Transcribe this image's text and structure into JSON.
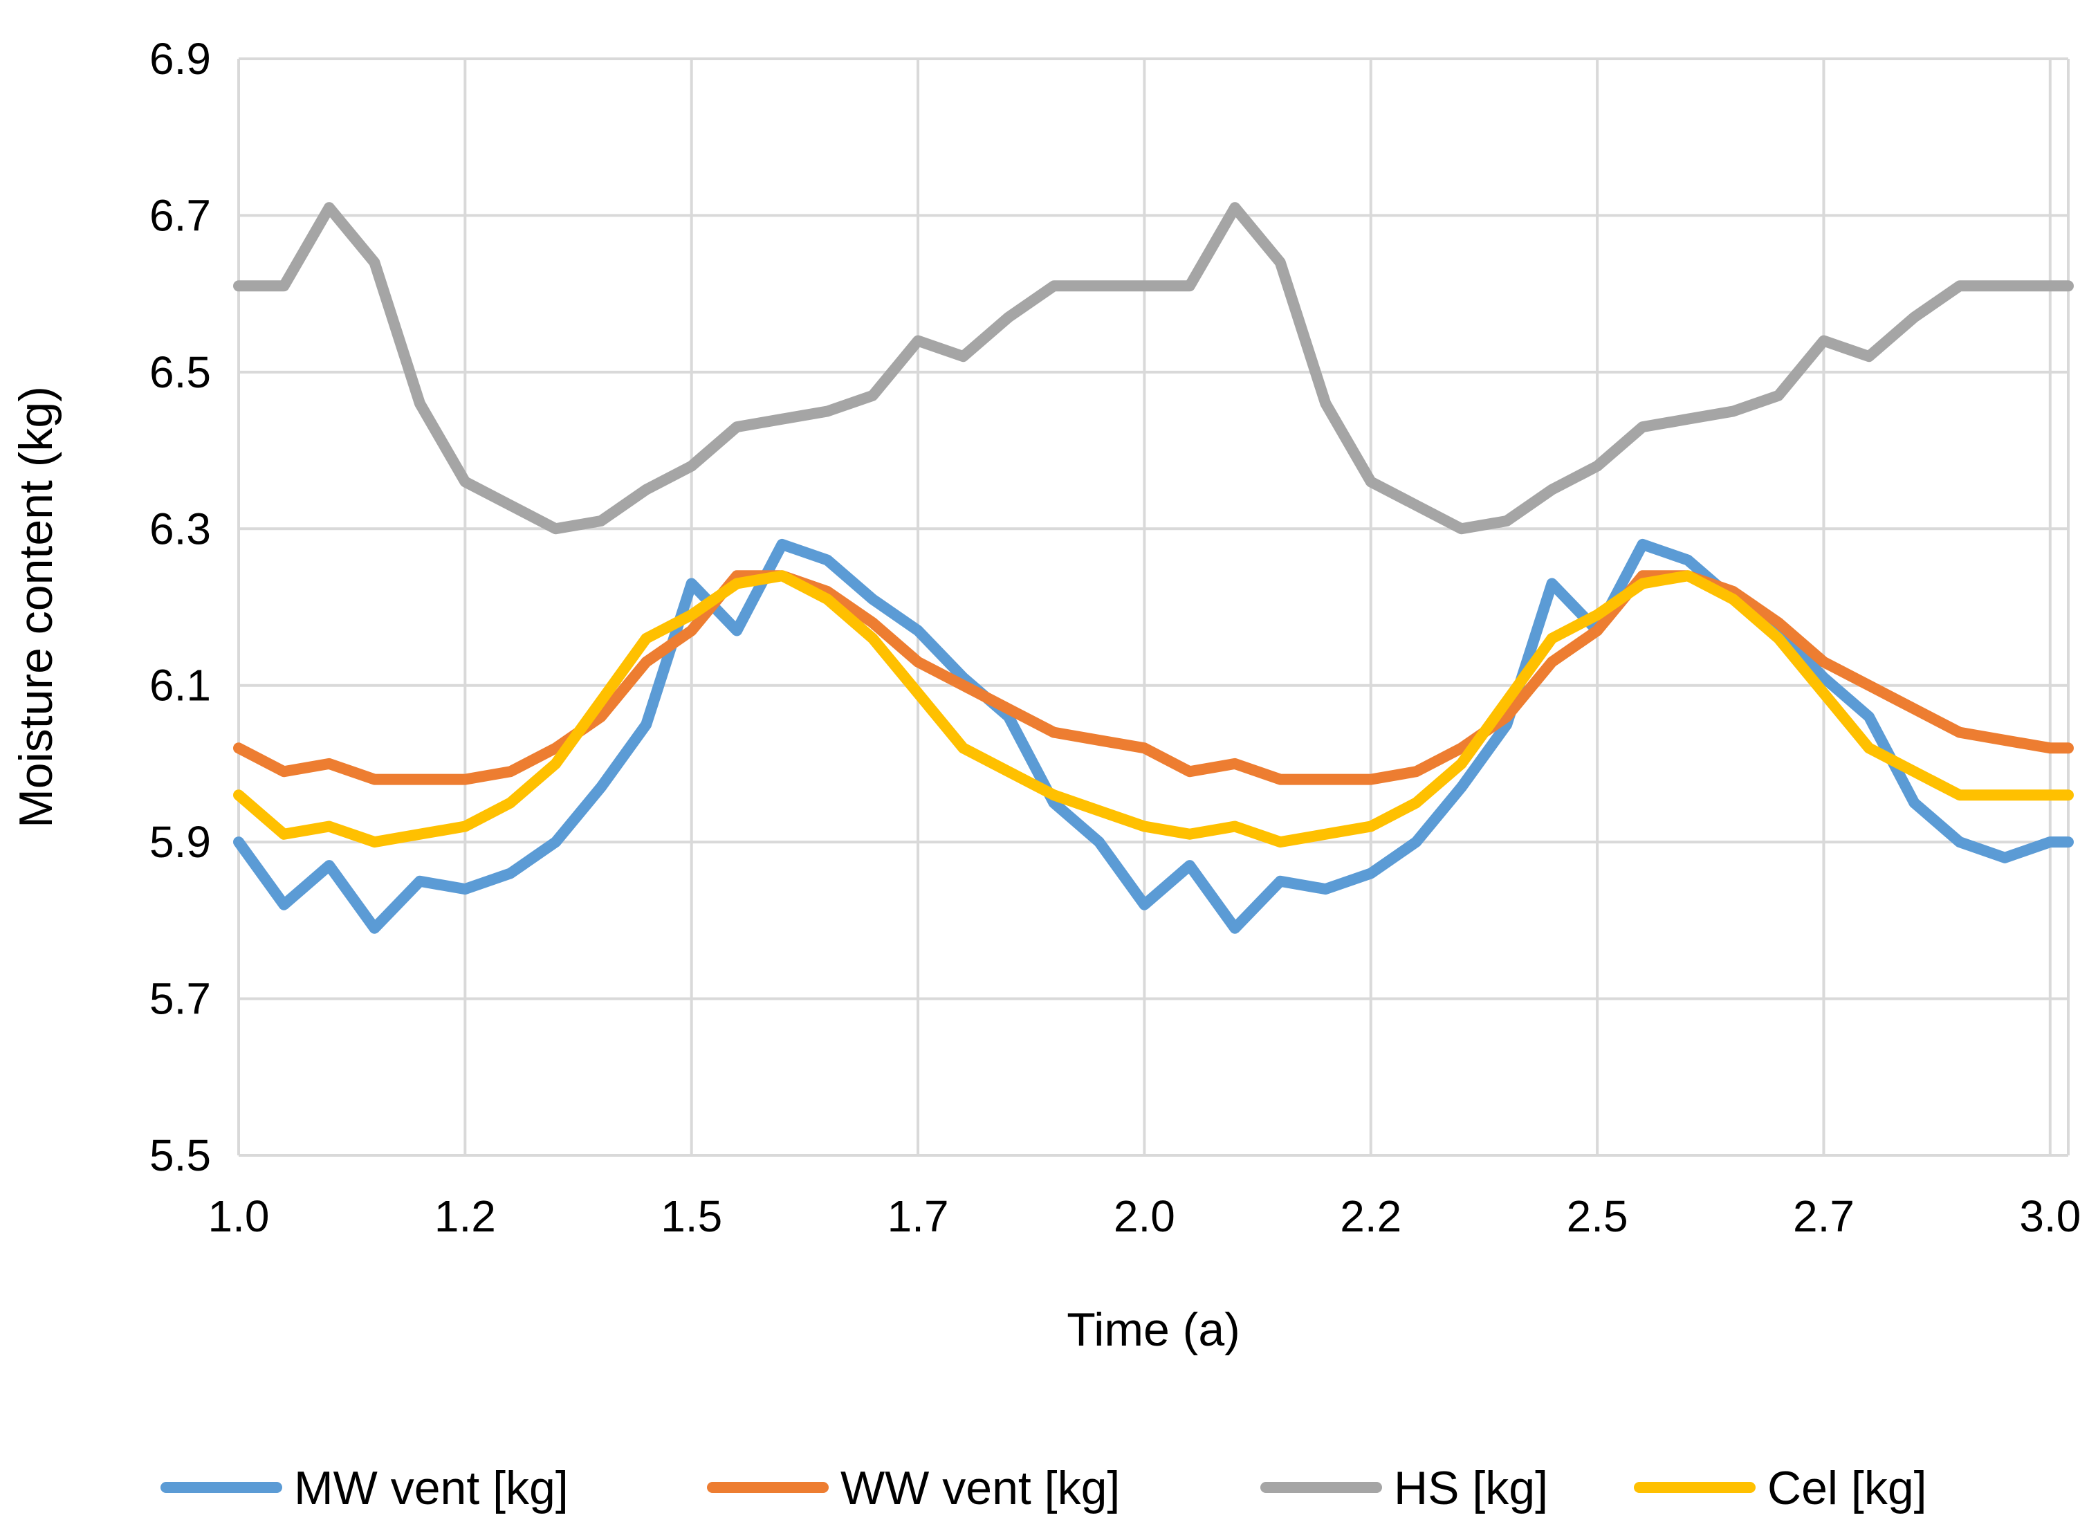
{
  "chart_data": {
    "type": "line",
    "title": "",
    "xlabel": "Time (a)",
    "ylabel": "Moisture content (kg)",
    "xlim": [
      1.0,
      3.02
    ],
    "ylim": [
      5.5,
      6.9
    ],
    "x_ticks": [
      1.0,
      1.25,
      1.5,
      1.75,
      2.0,
      2.25,
      2.5,
      2.75,
      3.0
    ],
    "x_tick_labels": [
      "1.0",
      "1.2",
      "1.5",
      "1.7",
      "2.0",
      "2.2",
      "2.5",
      "2.7",
      "3.0"
    ],
    "y_ticks": [
      5.5,
      5.7,
      5.9,
      6.1,
      6.3,
      6.5,
      6.7,
      6.9
    ],
    "y_tick_labels": [
      "5.5",
      "5.7",
      "5.9",
      "6.1",
      "6.3",
      "6.5",
      "6.7",
      "6.9"
    ],
    "grid": true,
    "legend_position": "bottom",
    "x": [
      1.0,
      1.05,
      1.1,
      1.15,
      1.2,
      1.25,
      1.3,
      1.35,
      1.4,
      1.45,
      1.5,
      1.55,
      1.6,
      1.65,
      1.7,
      1.75,
      1.8,
      1.85,
      1.9,
      1.95,
      2.0,
      2.05,
      2.1,
      2.15,
      2.2,
      2.25,
      2.3,
      2.35,
      2.4,
      2.45,
      2.5,
      2.55,
      2.6,
      2.65,
      2.7,
      2.75,
      2.8,
      2.85,
      2.9,
      2.95,
      3.0,
      3.02
    ],
    "series": [
      {
        "name": "MW vent [kg]",
        "color": "#5b9bd5",
        "values": [
          5.9,
          5.82,
          5.87,
          5.79,
          5.85,
          5.84,
          5.86,
          5.9,
          5.97,
          6.05,
          6.23,
          6.17,
          6.28,
          6.26,
          6.21,
          6.17,
          6.11,
          6.06,
          5.95,
          5.9,
          5.82,
          5.87,
          5.79,
          5.85,
          5.84,
          5.86,
          5.9,
          5.97,
          6.05,
          6.23,
          6.17,
          6.28,
          6.26,
          6.21,
          6.17,
          6.11,
          6.06,
          5.95,
          5.9,
          5.88,
          5.9,
          5.9
        ]
      },
      {
        "name": "WW vent [kg]",
        "color": "#ed7d31",
        "values": [
          6.02,
          5.99,
          6.0,
          5.98,
          5.98,
          5.98,
          5.99,
          6.02,
          6.06,
          6.13,
          6.17,
          6.24,
          6.24,
          6.22,
          6.18,
          6.13,
          6.1,
          6.07,
          6.04,
          6.03,
          6.02,
          5.99,
          6.0,
          5.98,
          5.98,
          5.98,
          5.99,
          6.02,
          6.06,
          6.13,
          6.17,
          6.24,
          6.24,
          6.22,
          6.18,
          6.13,
          6.1,
          6.07,
          6.04,
          6.03,
          6.02,
          6.02
        ]
      },
      {
        "name": "HS [kg]",
        "color": "#a5a5a5",
        "values": [
          6.61,
          6.61,
          6.71,
          6.64,
          6.46,
          6.36,
          6.33,
          6.3,
          6.31,
          6.35,
          6.38,
          6.43,
          6.44,
          6.45,
          6.47,
          6.54,
          6.52,
          6.57,
          6.61,
          6.61,
          6.61,
          6.61,
          6.71,
          6.64,
          6.46,
          6.36,
          6.33,
          6.3,
          6.31,
          6.35,
          6.38,
          6.43,
          6.44,
          6.45,
          6.47,
          6.54,
          6.52,
          6.57,
          6.61,
          6.61,
          6.61,
          6.61
        ]
      },
      {
        "name": "Cel [kg]",
        "color": "#ffc000",
        "values": [
          5.96,
          5.91,
          5.92,
          5.9,
          5.91,
          5.92,
          5.95,
          6.0,
          6.08,
          6.16,
          6.19,
          6.23,
          6.24,
          6.21,
          6.16,
          6.09,
          6.02,
          5.99,
          5.96,
          5.94,
          5.92,
          5.91,
          5.92,
          5.9,
          5.91,
          5.92,
          5.95,
          6.0,
          6.08,
          6.16,
          6.19,
          6.23,
          6.24,
          6.21,
          6.16,
          6.09,
          6.02,
          5.99,
          5.96,
          5.96,
          5.96,
          5.96
        ]
      }
    ]
  }
}
